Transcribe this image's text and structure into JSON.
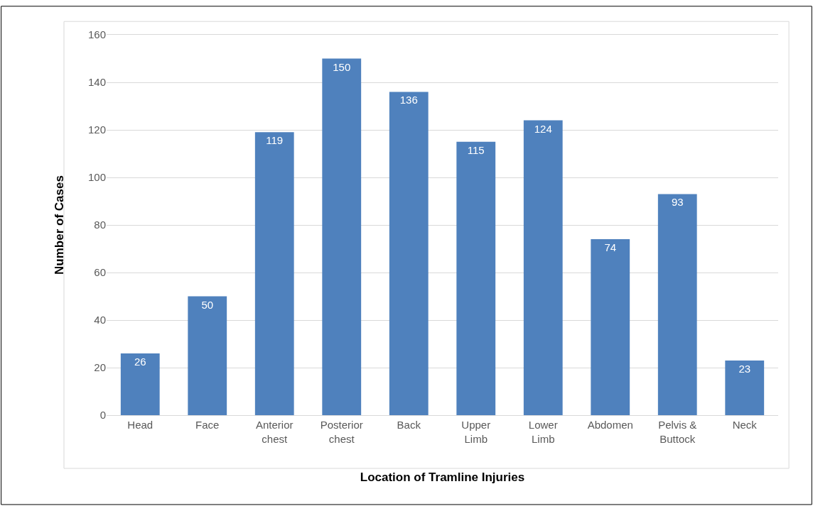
{
  "chart_data": {
    "type": "bar",
    "xlabel": "Location of Tramline Injuries",
    "ylabel": "Number of Cases",
    "categories": [
      "Head",
      "Face",
      "Anterior\nchest",
      "Posterior\nchest",
      "Back",
      "Upper\nLimb",
      "Lower\nLimb",
      "Abdomen",
      "Pelvis &\nButtock",
      "Neck"
    ],
    "values": [
      26,
      50,
      119,
      150,
      136,
      115,
      124,
      74,
      93,
      23
    ],
    "color": "#4f81bd",
    "ylim": [
      0,
      160
    ],
    "yticks": [
      0,
      20,
      40,
      60,
      80,
      100,
      120,
      140,
      160
    ],
    "grid": "y",
    "data_labels": true
  }
}
